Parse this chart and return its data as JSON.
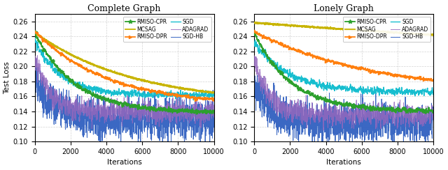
{
  "left_title": "Complete Graph",
  "right_title": "Lonely Graph",
  "xlabel": "Iterations",
  "ylabel": "Test Loss",
  "xlim": [
    0,
    10000
  ],
  "ylim": [
    0.1,
    0.27
  ],
  "yticks": [
    0.1,
    0.12,
    0.14,
    0.16,
    0.18,
    0.2,
    0.22,
    0.24,
    0.26
  ],
  "xticks": [
    0,
    2000,
    4000,
    6000,
    8000,
    10000
  ],
  "n_points": 200,
  "seed": 42,
  "colors": {
    "RMISO-CPR": "#2ca02c",
    "RMISO-DPR": "#ff7f0e",
    "ADAGRAD": "#9467bd",
    "MCSAG": "#c8b400",
    "SGD": "#17becf",
    "SGD-HB": "#3060c0"
  },
  "legend_order": [
    "RMISO-CPR",
    "MCSAG",
    "RMISO-DPR",
    "SGD",
    "ADAGRAD",
    "SGD-HB"
  ]
}
